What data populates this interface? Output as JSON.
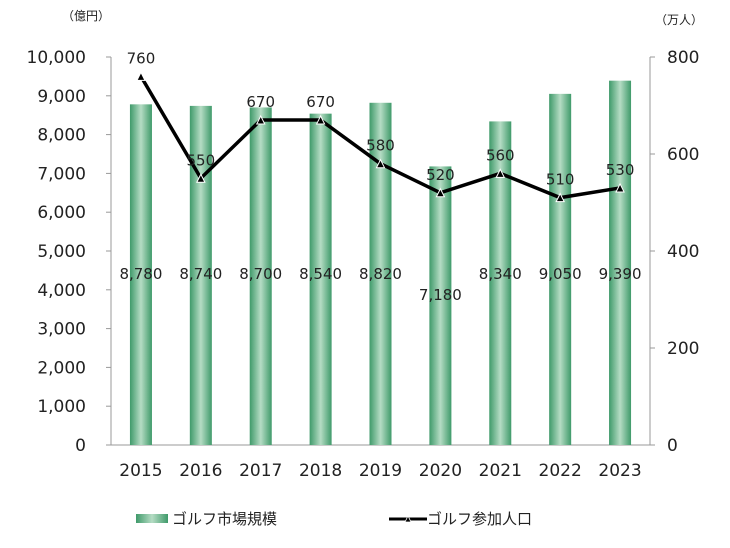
{
  "chart_data": {
    "type": "bar+line",
    "categories": [
      "2015",
      "2016",
      "2017",
      "2018",
      "2019",
      "2020",
      "2021",
      "2022",
      "2023"
    ],
    "left_axis": {
      "unit_label": "（億円）",
      "ylim": [
        0,
        10000
      ],
      "ticks": [
        "0",
        "1,000",
        "2,000",
        "3,000",
        "4,000",
        "5,000",
        "6,000",
        "7,000",
        "8,000",
        "9,000",
        "10,000"
      ]
    },
    "right_axis": {
      "unit_label": "（万人）",
      "ylim": [
        0,
        800
      ],
      "ticks": [
        "0",
        "200",
        "400",
        "600",
        "800"
      ]
    },
    "series": [
      {
        "name": "ゴルフ市場規模",
        "kind": "bar",
        "axis": "left",
        "color": "#3f9a6a",
        "values": [
          8780,
          8740,
          8700,
          8540,
          8820,
          7180,
          8340,
          9050,
          9390
        ],
        "labels": [
          "8,780",
          "8,740",
          "8,700",
          "8,540",
          "8,820",
          "7,180",
          "8,340",
          "9,050",
          "9,390"
        ]
      },
      {
        "name": "ゴルフ参加人口",
        "kind": "line",
        "axis": "right",
        "color": "#000000",
        "marker": "triangle",
        "values": [
          760,
          550,
          670,
          670,
          580,
          520,
          560,
          510,
          530
        ],
        "labels": [
          "760",
          "550",
          "670",
          "670",
          "580",
          "520",
          "560",
          "510",
          "530"
        ]
      }
    ],
    "grid": false,
    "legend": "bottom"
  }
}
